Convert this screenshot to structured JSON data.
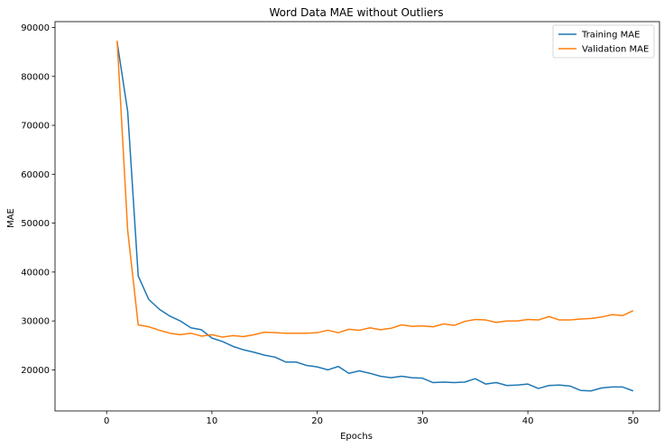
{
  "chart_data": {
    "type": "line",
    "title": "Word Data MAE without Outliers",
    "xlabel": "Epochs",
    "ylabel": "MAE",
    "xlim": [
      -4.9,
      52.5
    ],
    "ylim": [
      11600,
      91200
    ],
    "xticks": [
      0,
      10,
      20,
      30,
      40,
      50
    ],
    "yticks": [
      20000,
      30000,
      40000,
      50000,
      60000,
      70000,
      80000,
      90000
    ],
    "grid": false,
    "legend_position": "upper right",
    "x": [
      1,
      2,
      3,
      4,
      5,
      6,
      7,
      8,
      9,
      10,
      11,
      12,
      13,
      14,
      15,
      16,
      17,
      18,
      19,
      20,
      21,
      22,
      23,
      24,
      25,
      26,
      27,
      28,
      29,
      30,
      31,
      32,
      33,
      34,
      35,
      36,
      37,
      38,
      39,
      40,
      41,
      42,
      43,
      44,
      45,
      46,
      47,
      48,
      49,
      50
    ],
    "series": [
      {
        "name": "Training MAE",
        "color": "#1f77b4",
        "values": [
          87000,
          72800,
          39200,
          34400,
          32400,
          31000,
          30000,
          28600,
          28200,
          26500,
          25800,
          24800,
          24100,
          23600,
          23000,
          22600,
          21600,
          21600,
          20900,
          20600,
          20000,
          20700,
          19300,
          19800,
          19300,
          18700,
          18400,
          18700,
          18400,
          18300,
          17400,
          17500,
          17400,
          17500,
          18200,
          17100,
          17400,
          16800,
          16900,
          17100,
          16200,
          16800,
          16900,
          16700,
          15800,
          15700,
          16300,
          16500,
          16500,
          15700
        ]
      },
      {
        "name": "Validation MAE",
        "color": "#ff7f0e",
        "values": [
          87300,
          48500,
          29200,
          28800,
          28100,
          27500,
          27200,
          27500,
          26900,
          27200,
          26700,
          27000,
          26800,
          27200,
          27700,
          27600,
          27500,
          27500,
          27500,
          27600,
          28100,
          27600,
          28300,
          28100,
          28600,
          28200,
          28500,
          29200,
          28900,
          29000,
          28800,
          29400,
          29100,
          29900,
          30300,
          30200,
          29700,
          30000,
          30000,
          30300,
          30200,
          30900,
          30200,
          30200,
          30400,
          30500,
          30800,
          31300,
          31100,
          32100
        ]
      }
    ]
  }
}
